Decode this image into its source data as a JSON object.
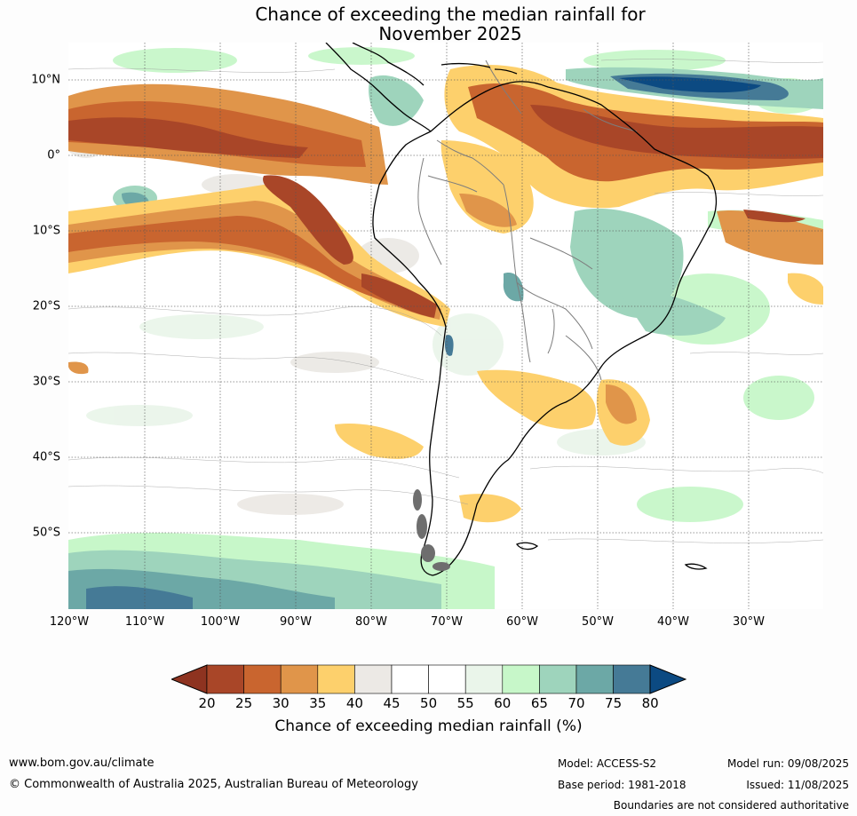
{
  "title": {
    "line1": "Chance of exceeding the median rainfall for",
    "line2": "November 2025"
  },
  "map": {
    "lat_labels": [
      "10°N",
      "0°",
      "10°S",
      "20°S",
      "30°S",
      "40°S",
      "50°S"
    ],
    "lon_labels": [
      "120°W",
      "110°W",
      "100°W",
      "90°W",
      "80°W",
      "70°W",
      "60°W",
      "50°W",
      "40°W",
      "30°W"
    ]
  },
  "colorbar": {
    "label": "Chance of exceeding median rainfall (%)",
    "ticks": [
      "20",
      "25",
      "30",
      "35",
      "40",
      "45",
      "50",
      "55",
      "60",
      "65",
      "70",
      "75",
      "80"
    ],
    "colors": [
      "#a94628",
      "#c9652f",
      "#e0954a",
      "#fdd06c",
      "#ece9e5",
      "#ffffff",
      "#ffffff",
      "#eaf5ea",
      "#c7f7c9",
      "#9ed4bc",
      "#6ca8a6",
      "#457a96"
    ],
    "under_color": "#8e3320",
    "over_color": "#0c4a82"
  },
  "footer": {
    "website": "www.bom.gov.au/climate",
    "copyright": "© Commonwealth of Australia 2025, Australian Bureau of Meteorology",
    "model": "Model: ACCESS-S2",
    "base_period": "Base period: 1981-2018",
    "model_run": "Model run: 09/08/2025",
    "issued": "Issued: 11/08/2025",
    "disclaimer": "Boundaries are not considered authoritative"
  }
}
